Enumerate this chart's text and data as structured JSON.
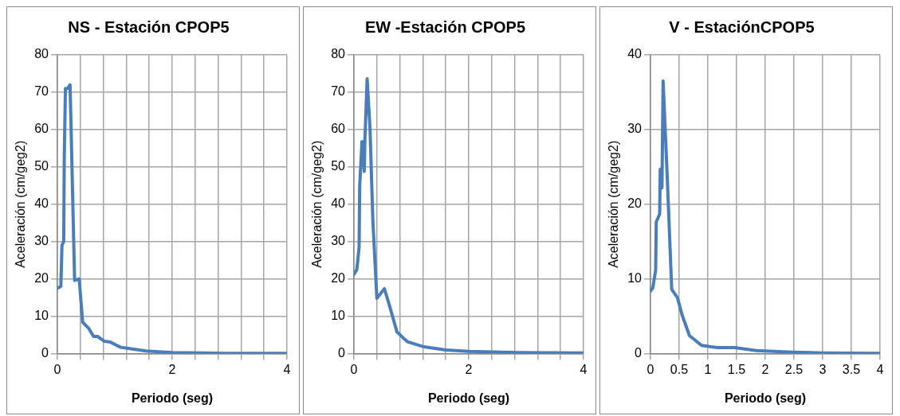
{
  "chart_data": [
    {
      "type": "line",
      "title": "NS - Estación CPOP5",
      "xlabel": "Periodo (seg)",
      "ylabel": "Aceleración (cm/geg2)",
      "color": "#4a7ebb",
      "x": [
        0,
        0.06,
        0.08,
        0.11,
        0.12,
        0.14,
        0.18,
        0.22,
        0.23,
        0.3,
        0.38,
        0.44,
        0.55,
        0.63,
        0.7,
        0.82,
        0.92,
        1.1,
        1.24,
        1.54,
        2.0,
        2.9,
        4
      ],
      "values": [
        17.5,
        18,
        29,
        30,
        53,
        71,
        71,
        72,
        66,
        19.6,
        20,
        8.4,
        6.7,
        4.6,
        4.6,
        3.3,
        3.1,
        1.7,
        1.4,
        0.7,
        0.3,
        0.1,
        0.1
      ],
      "xlim": [
        0,
        4
      ],
      "xticks": [
        0,
        {
          "value": 0.4,
          "label": null
        },
        {
          "value": 0.8,
          "label": null
        },
        {
          "value": 1.2,
          "label": null
        },
        {
          "value": 1.6,
          "label": null
        },
        2,
        {
          "value": 2.4,
          "label": null
        },
        {
          "value": 2.8,
          "label": null
        },
        {
          "value": 3.2,
          "label": null
        },
        {
          "value": 3.6,
          "label": null
        },
        4
      ],
      "ylim": [
        0,
        80
      ],
      "yticks": [
        0,
        10,
        20,
        30,
        40,
        50,
        60,
        70,
        80
      ],
      "grid": true
    },
    {
      "type": "line",
      "title": "EW -Estación CPOP5",
      "xlabel": "Periodo (seg)",
      "ylabel": "Aceleración (cm/geg2)",
      "color": "#4a7ebb",
      "x": [
        0,
        0.05,
        0.09,
        0.1,
        0.14,
        0.18,
        0.19,
        0.23,
        0.28,
        0.33,
        0.4,
        0.53,
        0.6,
        0.75,
        0.93,
        1.2,
        1.6,
        2.0,
        2.87,
        4
      ],
      "values": [
        21.2,
        22.5,
        28.5,
        44.8,
        56.8,
        48.8,
        56.8,
        73.6,
        60.3,
        35.4,
        14.8,
        17.4,
        13.9,
        5.8,
        3.2,
        1.9,
        1.0,
        0.6,
        0.3,
        0.2
      ],
      "xlim": [
        0,
        4
      ],
      "xticks": [
        0,
        {
          "value": 0.4,
          "label": null
        },
        {
          "value": 0.8,
          "label": null
        },
        {
          "value": 1.2,
          "label": null
        },
        {
          "value": 1.6,
          "label": null
        },
        2,
        {
          "value": 2.4,
          "label": null
        },
        {
          "value": 2.8,
          "label": null
        },
        {
          "value": 3.2,
          "label": null
        },
        {
          "value": 3.6,
          "label": null
        },
        4
      ],
      "ylim": [
        0,
        80
      ],
      "yticks": [
        0,
        10,
        20,
        30,
        40,
        50,
        60,
        70,
        80
      ],
      "grid": true
    },
    {
      "type": "line",
      "title": "V - EstaciónCPOP5",
      "xlabel": "Periodo (seg)",
      "ylabel": "Aceleración (cm/geg2)",
      "color": "#4a7ebb",
      "x": [
        0,
        0.04,
        0.09,
        0.1,
        0.16,
        0.17,
        0.2,
        0.22,
        0.29,
        0.37,
        0.47,
        0.55,
        0.68,
        0.89,
        1.16,
        1.47,
        1.84,
        2.47,
        3.0,
        4
      ],
      "values": [
        8.4,
        8.8,
        11.2,
        17.6,
        18.7,
        24.7,
        22.2,
        36.5,
        24,
        8.6,
        7.5,
        5.2,
        2.4,
        1.1,
        0.8,
        0.8,
        0.4,
        0.2,
        0.1,
        0.05
      ],
      "xlim": [
        0,
        4
      ],
      "xticks": [
        0,
        0.5,
        1,
        1.5,
        2,
        2.5,
        3,
        3.5,
        4
      ],
      "ylim": [
        0,
        40
      ],
      "yticks": [
        0,
        10,
        20,
        30,
        40
      ],
      "grid": true
    }
  ]
}
